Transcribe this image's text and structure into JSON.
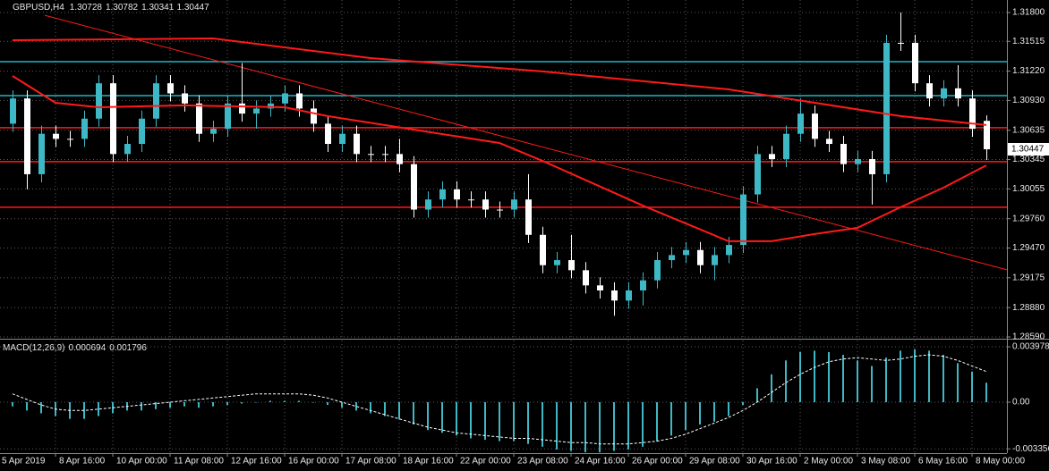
{
  "chart_data": [
    {
      "type": "candlestick",
      "title": "GBPUSD,H4",
      "header": [
        1.30728,
        1.30782,
        1.30341,
        1.30447
      ],
      "open": [
        1.307,
        1.3095,
        1.302,
        1.306,
        1.3055,
        1.3055,
        1.3075,
        1.311,
        1.304,
        1.305,
        1.3075,
        1.311,
        1.31,
        1.309,
        1.306,
        1.3065,
        1.309,
        1.308,
        1.3085,
        1.309,
        1.31,
        1.3085,
        1.307,
        1.305,
        1.306,
        1.304,
        1.304,
        1.304,
        1.303,
        1.2985,
        1.2995,
        1.3005,
        1.2995,
        1.2995,
        1.2985,
        1.2985,
        1.2995,
        1.296,
        1.293,
        1.2935,
        1.2925,
        1.291,
        1.2905,
        1.2895,
        1.2905,
        1.2915,
        1.2935,
        1.294,
        1.2945,
        1.293,
        1.294,
        1.295,
        1.3,
        1.304,
        1.3035,
        1.306,
        1.308,
        1.3055,
        1.305,
        1.303,
        1.3035,
        1.302,
        1.315,
        1.315,
        1.311,
        1.3095,
        1.3105,
        1.3095,
        1.30728
      ],
      "high": [
        1.3103,
        1.3103,
        1.3068,
        1.3068,
        1.3063,
        1.3083,
        1.3118,
        1.3118,
        1.3058,
        1.3083,
        1.3118,
        1.3118,
        1.3108,
        1.3098,
        1.3073,
        1.3098,
        1.313,
        1.3093,
        1.3098,
        1.3108,
        1.3108,
        1.3093,
        1.3078,
        1.3068,
        1.3068,
        1.3048,
        1.3048,
        1.3055,
        1.3038,
        1.3003,
        1.3013,
        1.3013,
        1.3003,
        1.3003,
        1.2993,
        1.3003,
        1.302,
        1.2968,
        1.2943,
        1.296,
        1.2933,
        1.2918,
        1.2913,
        1.2913,
        1.2923,
        1.2943,
        1.2948,
        1.2953,
        1.2953,
        1.2948,
        1.2958,
        1.3008,
        1.3048,
        1.3048,
        1.3068,
        1.3095,
        1.3088,
        1.3063,
        1.3058,
        1.3043,
        1.3043,
        1.3158,
        1.318,
        1.3158,
        1.3118,
        1.3113,
        1.3128,
        1.3103,
        1.30782
      ],
      "low": [
        1.3062,
        1.3005,
        1.3012,
        1.3047,
        1.3047,
        1.3047,
        1.3067,
        1.3032,
        1.3032,
        1.3042,
        1.3067,
        1.3092,
        1.3082,
        1.3052,
        1.3052,
        1.3057,
        1.3072,
        1.3065,
        1.3077,
        1.3082,
        1.3077,
        1.3062,
        1.3042,
        1.3042,
        1.3032,
        1.3032,
        1.3032,
        1.3022,
        1.2977,
        1.2977,
        1.2987,
        1.2987,
        1.2987,
        1.2977,
        1.2977,
        1.2977,
        1.2952,
        1.2922,
        1.2922,
        1.2917,
        1.2902,
        1.2897,
        1.288,
        1.2887,
        1.289,
        1.2907,
        1.2927,
        1.2932,
        1.2922,
        1.2915,
        1.2932,
        1.2942,
        1.2992,
        1.3027,
        1.3027,
        1.3052,
        1.3047,
        1.3042,
        1.3022,
        1.3022,
        1.299,
        1.3012,
        1.3142,
        1.3102,
        1.3087,
        1.3087,
        1.3087,
        1.3057,
        1.30341
      ],
      "close": [
        1.3095,
        1.302,
        1.306,
        1.3055,
        1.3055,
        1.3075,
        1.311,
        1.304,
        1.305,
        1.3075,
        1.311,
        1.31,
        1.309,
        1.306,
        1.3065,
        1.309,
        1.308,
        1.3085,
        1.309,
        1.31,
        1.3085,
        1.307,
        1.305,
        1.306,
        1.304,
        1.304,
        1.304,
        1.303,
        1.2985,
        1.2995,
        1.3005,
        1.2995,
        1.2995,
        1.2985,
        1.2985,
        1.2995,
        1.296,
        1.293,
        1.2935,
        1.2925,
        1.291,
        1.2905,
        1.2895,
        1.2905,
        1.2915,
        1.2935,
        1.294,
        1.2945,
        1.293,
        1.294,
        1.295,
        1.3,
        1.304,
        1.3035,
        1.306,
        1.308,
        1.3055,
        1.305,
        1.303,
        1.3035,
        1.302,
        1.315,
        1.315,
        1.311,
        1.3095,
        1.3105,
        1.3095,
        1.3065,
        1.30447
      ],
      "up_color": "#3fb8c6",
      "down_color": "#ffffff",
      "lines": [
        {
          "color": "#ff1a1a",
          "x": [
            0,
            14,
            25,
            37,
            50,
            62,
            68
          ],
          "values": [
            1.31526,
            1.31544,
            1.31349,
            1.31217,
            1.3104,
            1.30775,
            1.30687
          ]
        },
        {
          "color": "#ff1a1a",
          "x": [
            0,
            3,
            6,
            12,
            19,
            22,
            28,
            34,
            37,
            44,
            50,
            53,
            56,
            59,
            62,
            65,
            68
          ],
          "values": [
            1.31172,
            1.30907,
            1.30863,
            1.30881,
            1.30863,
            1.30775,
            1.30642,
            1.30509,
            1.30333,
            1.29891,
            1.29537,
            1.29537,
            1.29608,
            1.2967,
            1.29873,
            1.30067,
            1.30288
          ]
        }
      ],
      "trendline": {
        "color": "#ff1a1a",
        "x": [
          2.25,
          69.4375
        ],
        "values": [
          1.31773,
          1.29254
        ]
      },
      "levels": [
        {
          "value": 1.31314,
          "color": "#1fb5c8"
        },
        {
          "value": 1.30978,
          "color": "#1fb5c8"
        },
        {
          "value": 1.3066,
          "color": "#ff1a1a"
        },
        {
          "value": 1.30324,
          "color": "#ff1a1a"
        },
        {
          "value": 1.29873,
          "color": "#ff1a1a"
        }
      ],
      "current_price": 1.30447,
      "ylim": [
        1.28581,
        1.31924
      ],
      "yticks": [
        {
          "value": 1.318,
          "label": "1.31800"
        },
        {
          "value": 1.31515,
          "label": "1.31515"
        },
        {
          "value": 1.3122,
          "label": "1.31220"
        },
        {
          "value": 1.3093,
          "label": "1.30930"
        },
        {
          "value": 1.30635,
          "label": "1.30635"
        },
        {
          "value": 1.30345,
          "label": "1.30345"
        },
        {
          "value": 1.30055,
          "label": "1.30055"
        },
        {
          "value": 1.2976,
          "label": "1.29760"
        },
        {
          "value": 1.2947,
          "label": "1.29470"
        },
        {
          "value": 1.29175,
          "label": "1.29175"
        },
        {
          "value": 1.2888,
          "label": "1.28880"
        },
        {
          "value": 1.2859,
          "label": "1.28590"
        }
      ],
      "grid": true
    },
    {
      "type": "macd",
      "title": "MACD(12,26,9)",
      "header": [
        0.000694,
        0.001796
      ],
      "series": [
        {
          "kind": "histogram",
          "color": "#3fb8c6",
          "values": [
            -0.0003,
            -0.0006,
            -0.0008,
            -0.001,
            -0.0012,
            -0.0012,
            -0.001,
            -0.0008,
            -0.0006,
            -0.0006,
            -0.0005,
            -0.0004,
            -0.0003,
            -0.0004,
            -0.0003,
            -0.0002,
            -0.0001,
            0,
            0.0001,
            0.0001,
            0.0001,
            0,
            -0.0002,
            -0.0004,
            -0.0006,
            -0.0008,
            -0.001,
            -0.0012,
            -0.0016,
            -0.002,
            -0.0022,
            -0.0024,
            -0.0026,
            -0.0027,
            -0.0028,
            -0.0028,
            -0.003,
            -0.0032,
            -0.0034,
            -0.0035,
            -0.0036,
            -0.0036,
            -0.0035,
            -0.0034,
            -0.0032,
            -0.0028,
            -0.0024,
            -0.002,
            -0.0016,
            -0.0014,
            -0.001,
            -0.0002,
            0.001,
            0.002,
            0.003,
            0.0036,
            0.0037,
            0.0036,
            0.0034,
            0.003,
            0.0026,
            0.0032,
            0.0037,
            0.0038,
            0.0037,
            0.0034,
            0.0028,
            0.0022,
            0.0014
          ]
        },
        {
          "kind": "signal",
          "color": "#ffffff",
          "values": [
            0.0006,
            0.0002,
            -0.0002,
            -0.0005,
            -0.0006,
            -0.0006,
            -0.0005,
            -0.0004,
            -0.0003,
            -0.0002,
            -0.0001,
            0,
            0.0001,
            0.0002,
            0.0003,
            0.0004,
            0.0005,
            0.0006,
            0.0006,
            0.0006,
            0.0006,
            0.0005,
            0.0003,
            0,
            -0.0003,
            -0.0006,
            -0.0009,
            -0.0012,
            -0.0015,
            -0.0018,
            -0.002,
            -0.0022,
            -0.0023,
            -0.0024,
            -0.0025,
            -0.0026,
            -0.0026,
            -0.0027,
            -0.0028,
            -0.0029,
            -0.0029,
            -0.003,
            -0.003,
            -0.003,
            -0.0029,
            -0.0028,
            -0.0026,
            -0.0023,
            -0.0019,
            -0.0015,
            -0.0011,
            -0.0006,
            0,
            0.0007,
            0.0014,
            0.002,
            0.0025,
            0.0029,
            0.0031,
            0.0032,
            0.0031,
            0.003,
            0.0031,
            0.0033,
            0.0034,
            0.0033,
            0.003,
            0.0026,
            0.0022
          ]
        }
      ],
      "ylim": [
        -0.00366,
        0.00443
      ],
      "yticks": [
        0.003978,
        {
          "value": 0,
          "label": "0.00"
        },
        -0.003356
      ],
      "xlim": [
        -0.875,
        69.4375
      ],
      "xticks": [
        {
          "value": -1,
          "label": "5 Apr 2019"
        },
        {
          "value": 3,
          "label": "8 Apr 16:00"
        },
        {
          "value": 7,
          "label": "10 Apr 00:00"
        },
        {
          "value": 11,
          "label": "11 Apr 08:00"
        },
        {
          "value": 15,
          "label": "12 Apr 16:00"
        },
        {
          "value": 19,
          "label": "16 Apr 00:00"
        },
        {
          "value": 23,
          "label": "17 Apr 08:00"
        },
        {
          "value": 27,
          "label": "18 Apr 16:00"
        },
        {
          "value": 31,
          "label": "22 Apr 00:00"
        },
        {
          "value": 35,
          "label": "23 Apr 08:00"
        },
        {
          "value": 39,
          "label": "24 Apr 16:00"
        },
        {
          "value": 43,
          "label": "26 Apr 00:00"
        },
        {
          "value": 47,
          "label": "29 Apr 08:00"
        },
        {
          "value": 51,
          "label": "30 Apr 16:00"
        },
        {
          "value": 55,
          "label": "2 May 00:00"
        },
        {
          "value": 59,
          "label": "3 May 08:00"
        },
        {
          "value": 63,
          "label": "6 May 16:00"
        },
        {
          "value": 67,
          "label": "8 May 00:00"
        }
      ],
      "grid": true
    }
  ]
}
